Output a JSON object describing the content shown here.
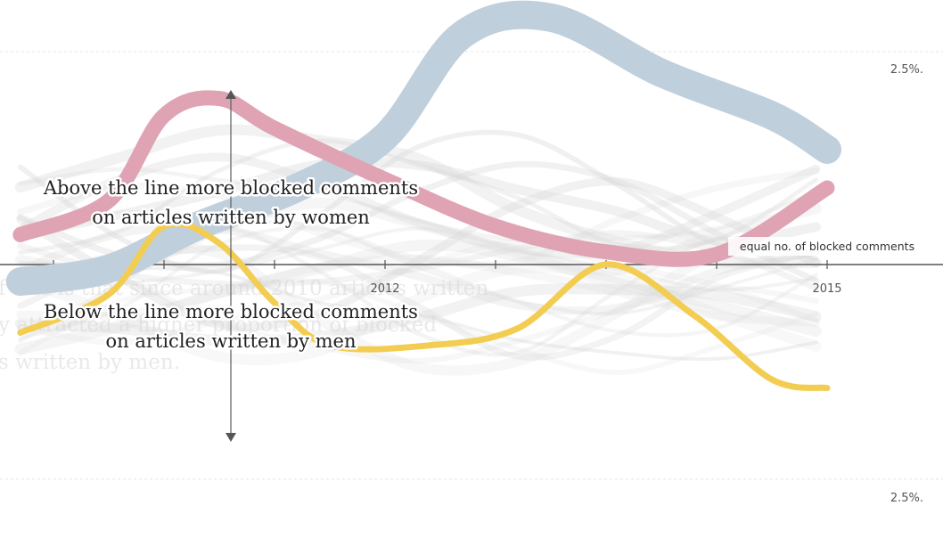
{
  "chart_data": {
    "type": "line",
    "x_range": [
      2007,
      2015
    ],
    "y_range": [
      -3.0,
      3.0
    ],
    "x_ticks": [
      {
        "x": 2007,
        "label": ""
      },
      {
        "x": 2008,
        "label": ""
      },
      {
        "x": 2009,
        "label": ""
      },
      {
        "x": 2010,
        "label": "2012"
      },
      {
        "x": 2011,
        "label": ""
      },
      {
        "x": 2012,
        "label": ""
      },
      {
        "x": 2013,
        "label": ""
      },
      {
        "x": 2014,
        "label": "2015"
      }
    ],
    "gridlines": [
      {
        "y": 2.5,
        "label": "2.5%."
      },
      {
        "y": -2.5,
        "label": "2.5%."
      }
    ],
    "zero_line_label": "equal no. of blocked comments",
    "annotations": {
      "above": [
        "Above the line more blocked comments",
        "on articles written by women"
      ],
      "below": [
        "Below the line more blocked comments",
        "on articles written by men"
      ]
    },
    "background_text": [
      "f this is that since around 2010 articles written",
      "y attracted a higher proportion of blocked",
      "s written by men."
    ],
    "series": [
      {
        "color": "#c0cfdc",
        "width": 32,
        "points": [
          [
            2006.7,
            -0.2
          ],
          [
            2007.5,
            -0.05
          ],
          [
            2008.3,
            0.45
          ],
          [
            2009.2,
            0.9
          ],
          [
            2010,
            1.5
          ],
          [
            2010.7,
            2.7
          ],
          [
            2011.5,
            2.9
          ],
          [
            2012.5,
            2.25
          ],
          [
            2013.5,
            1.75
          ],
          [
            2014,
            1.35
          ]
        ]
      },
      {
        "color": "#dfa3b3",
        "width": 17,
        "points": [
          [
            2006.7,
            0.35
          ],
          [
            2007.5,
            0.75
          ],
          [
            2008,
            1.75
          ],
          [
            2008.5,
            1.95
          ],
          [
            2009,
            1.6
          ],
          [
            2010,
            1.0
          ],
          [
            2011,
            0.45
          ],
          [
            2012,
            0.15
          ],
          [
            2013,
            0.12
          ],
          [
            2014,
            0.9
          ]
        ]
      },
      {
        "color": "#f3cd52",
        "width": 7,
        "points": [
          [
            2006.7,
            -0.8
          ],
          [
            2007.5,
            -0.35
          ],
          [
            2008,
            0.45
          ],
          [
            2008.5,
            0.25
          ],
          [
            2009,
            -0.45
          ],
          [
            2009.5,
            -0.95
          ],
          [
            2010.4,
            -0.95
          ],
          [
            2011.2,
            -0.75
          ],
          [
            2012,
            0.0
          ],
          [
            2012.8,
            -0.6
          ],
          [
            2013.5,
            -1.35
          ],
          [
            2014,
            -1.45
          ]
        ]
      }
    ]
  }
}
